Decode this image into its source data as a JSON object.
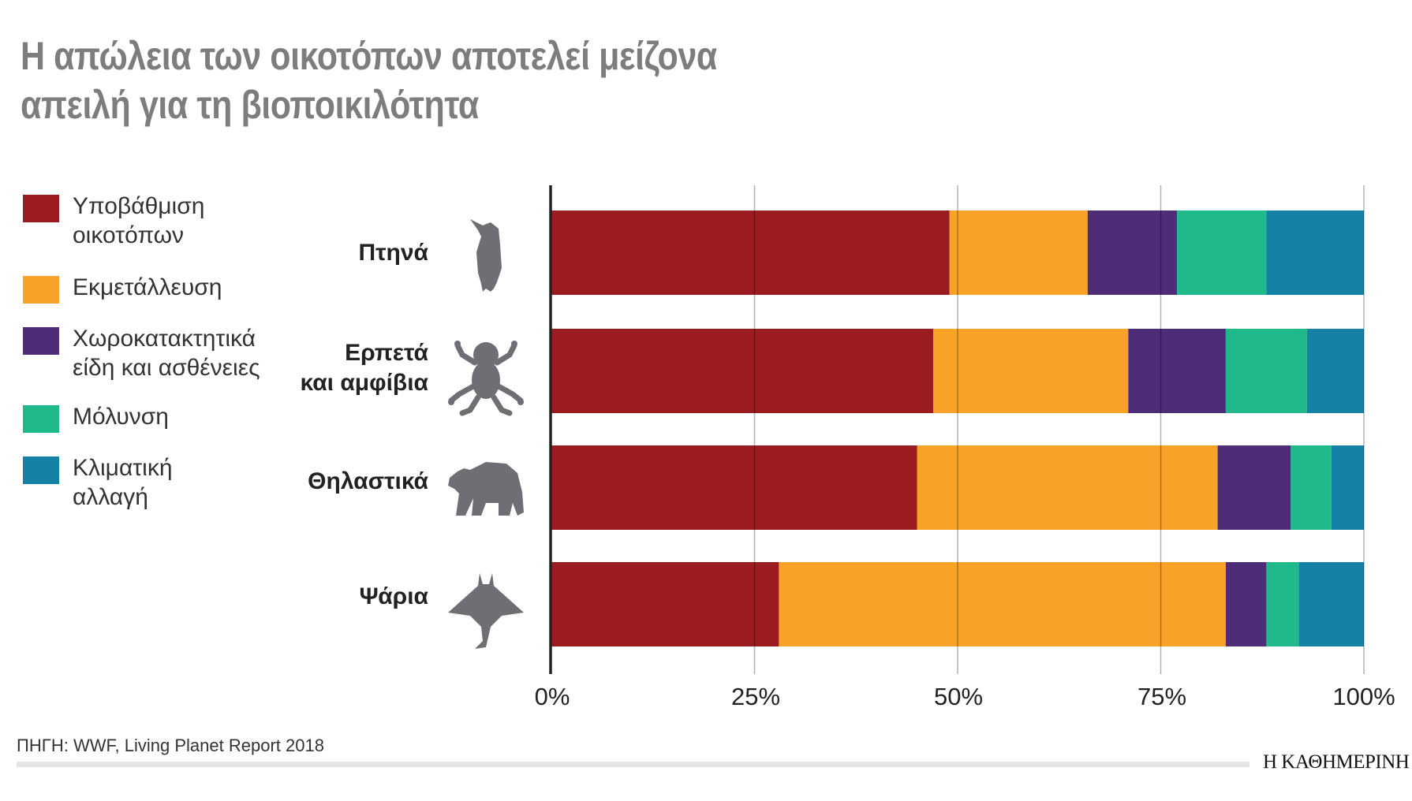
{
  "title": [
    "Η απώλεια των οικοτόπων αποτελεί μείζονα",
    "απειλή για τη βιοποικιλότητα"
  ],
  "source": "ΠΗΓΗ: WWF, Living Planet Report 2018",
  "logo": "Η ΚΑΘΗΜΕΡΙΝΗ",
  "chart_data": {
    "type": "bar",
    "orientation": "horizontal",
    "stacked": true,
    "normalized": true,
    "categories": [
      "Πτηνά",
      "Ερπετά\nκαι αμφίβια",
      "Θηλαστικά",
      "Ψάρια"
    ],
    "category_icons": [
      "bird-icon",
      "frog-icon",
      "bear-icon",
      "manta-ray-icon"
    ],
    "series": [
      {
        "name": "Υποβάθμιση\nοικοτόπων",
        "color": "#9a1b20",
        "values": [
          49,
          47,
          45,
          28
        ]
      },
      {
        "name": "Εκμετάλλευση",
        "color": "#f8a227",
        "values": [
          17,
          24,
          37,
          55
        ]
      },
      {
        "name": "Χωροκατακτητικά\nείδη και ασθένειες",
        "color": "#4f2c78",
        "values": [
          11,
          12,
          9,
          5
        ]
      },
      {
        "name": "Μόλυνση",
        "color": "#20b98c",
        "values": [
          11,
          10,
          5,
          4
        ]
      },
      {
        "name": "Κλιματική\nαλλαγή",
        "color": "#1582a5",
        "values": [
          12,
          7,
          4,
          8
        ]
      }
    ],
    "xlim": [
      0,
      100
    ],
    "xticks": [
      "0%",
      "25%",
      "50%",
      "75%",
      "100%"
    ],
    "grid": true,
    "legend_position": "left"
  }
}
